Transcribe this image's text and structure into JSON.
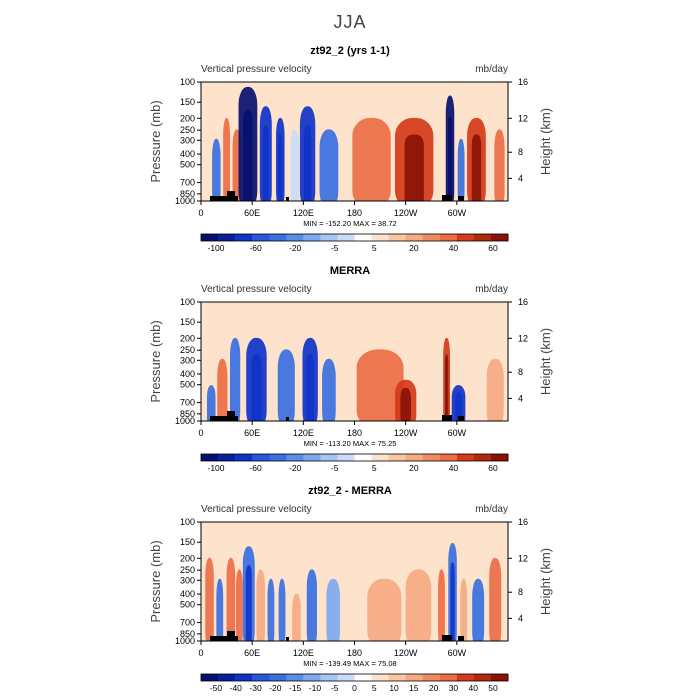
{
  "page_title": "JJA",
  "colors": {
    "blue_darkest": "#08106e",
    "blue_dark": "#1033c8",
    "blue_mid": "#3a6fe0",
    "blue_light": "#7fa8f0",
    "blue_pale": "#c9dcf8",
    "peach_pale": "#fde2cc",
    "orange_light": "#f5aa82",
    "orange": "#ec6e45",
    "red": "#d43b1a",
    "red_dark": "#8a1206",
    "topography": "#000000"
  },
  "chart_data": [
    {
      "type": "heatmap",
      "title": "zt92_2 (yrs 1-1)",
      "subtitle_left": "Vertical pressure velocity",
      "subtitle_right": "mb/day",
      "ylabel": "Pressure (mb)",
      "ylabel_right": "Height (km)",
      "x_ticks": [
        "0",
        "60E",
        "120E",
        "180",
        "120W",
        "60W"
      ],
      "y_ticks": [
        "100",
        "150",
        "200",
        "250",
        "300",
        "400",
        "500",
        "700",
        "850",
        "1000"
      ],
      "y_ticks_right": [
        "16",
        "12",
        "8",
        "4"
      ],
      "stats": "MIN = -152.20   MAX =  38.72",
      "colorbar_labels": [
        "-100",
        "-60",
        "-20",
        "-5",
        "5",
        "20",
        "40",
        "60"
      ],
      "min": -152.2,
      "max": 38.72,
      "features": [
        {
          "lon": 18,
          "width": 10,
          "top_mb": 300,
          "value": -20
        },
        {
          "lon": 30,
          "width": 8,
          "top_mb": 200,
          "value": 20
        },
        {
          "lon": 42,
          "width": 10,
          "top_mb": 250,
          "value": 20
        },
        {
          "lon": 55,
          "width": 22,
          "top_mb": 110,
          "value": -100
        },
        {
          "lon": 76,
          "width": 14,
          "top_mb": 160,
          "value": -60
        },
        {
          "lon": 93,
          "width": 10,
          "top_mb": 200,
          "value": -60
        },
        {
          "lon": 110,
          "width": 10,
          "top_mb": 250,
          "value": -5
        },
        {
          "lon": 125,
          "width": 18,
          "top_mb": 160,
          "value": -60
        },
        {
          "lon": 150,
          "width": 22,
          "top_mb": 250,
          "value": -20
        },
        {
          "lon": 200,
          "width": 45,
          "top_mb": 200,
          "value": 20
        },
        {
          "lon": 250,
          "width": 45,
          "top_mb": 200,
          "value": 40
        },
        {
          "lon": 292,
          "width": 10,
          "top_mb": 130,
          "value": -100
        },
        {
          "lon": 305,
          "width": 8,
          "top_mb": 300,
          "value": -20
        },
        {
          "lon": 323,
          "width": 22,
          "top_mb": 200,
          "value": 40
        },
        {
          "lon": 350,
          "width": 12,
          "top_mb": 250,
          "value": 20
        }
      ]
    },
    {
      "type": "heatmap",
      "title": "MERRA",
      "subtitle_left": "Vertical pressure velocity",
      "subtitle_right": "mb/day",
      "ylabel": "Pressure (mb)",
      "ylabel_right": "Height (km)",
      "x_ticks": [
        "0",
        "60E",
        "120E",
        "180",
        "120W",
        "60W"
      ],
      "y_ticks": [
        "100",
        "150",
        "200",
        "250",
        "300",
        "400",
        "500",
        "700",
        "850",
        "1000"
      ],
      "y_ticks_right": [
        "16",
        "12",
        "8",
        "4"
      ],
      "stats": "MIN = -113.20   MAX =  75.25",
      "colorbar_labels": [
        "-100",
        "-60",
        "-20",
        "-5",
        "5",
        "20",
        "40",
        "60"
      ],
      "min": -113.2,
      "max": 75.25,
      "features": [
        {
          "lon": 12,
          "width": 10,
          "top_mb": 500,
          "value": -20
        },
        {
          "lon": 25,
          "width": 12,
          "top_mb": 300,
          "value": 20
        },
        {
          "lon": 40,
          "width": 12,
          "top_mb": 200,
          "value": -20
        },
        {
          "lon": 65,
          "width": 24,
          "top_mb": 200,
          "value": -60
        },
        {
          "lon": 100,
          "width": 20,
          "top_mb": 250,
          "value": -20
        },
        {
          "lon": 128,
          "width": 18,
          "top_mb": 200,
          "value": -60
        },
        {
          "lon": 150,
          "width": 16,
          "top_mb": 300,
          "value": -20
        },
        {
          "lon": 210,
          "width": 55,
          "top_mb": 250,
          "value": 20
        },
        {
          "lon": 240,
          "width": 25,
          "top_mb": 450,
          "value": 40
        },
        {
          "lon": 288,
          "width": 8,
          "top_mb": 200,
          "value": 40
        },
        {
          "lon": 302,
          "width": 16,
          "top_mb": 500,
          "value": -60
        },
        {
          "lon": 345,
          "width": 20,
          "top_mb": 300,
          "value": 5
        }
      ]
    },
    {
      "type": "heatmap",
      "title": "zt92_2 - MERRA",
      "subtitle_left": "Vertical pressure velocity",
      "subtitle_right": "mb/day",
      "ylabel": "Pressure (mb)",
      "ylabel_right": "Height (km)",
      "x_ticks": [
        "0",
        "60E",
        "120E",
        "180",
        "120W",
        "60W"
      ],
      "y_ticks": [
        "100",
        "150",
        "200",
        "250",
        "300",
        "400",
        "500",
        "700",
        "850",
        "1000"
      ],
      "y_ticks_right": [
        "16",
        "12",
        "8",
        "4"
      ],
      "stats": "MIN = -139.49   MAX =  75.08",
      "colorbar_labels": [
        "-50",
        "-40",
        "-30",
        "-20",
        "-15",
        "-10",
        "-5",
        "0",
        "5",
        "10",
        "15",
        "20",
        "30",
        "40",
        "50"
      ],
      "min": -139.49,
      "max": 75.08,
      "features": [
        {
          "lon": 10,
          "width": 10,
          "top_mb": 200,
          "value": 30
        },
        {
          "lon": 22,
          "width": 8,
          "top_mb": 300,
          "value": -20
        },
        {
          "lon": 35,
          "width": 10,
          "top_mb": 200,
          "value": 20
        },
        {
          "lon": 45,
          "width": 8,
          "top_mb": 250,
          "value": 30
        },
        {
          "lon": 56,
          "width": 14,
          "top_mb": 160,
          "value": -50
        },
        {
          "lon": 70,
          "width": 10,
          "top_mb": 250,
          "value": 15
        },
        {
          "lon": 82,
          "width": 8,
          "top_mb": 300,
          "value": -20
        },
        {
          "lon": 95,
          "width": 8,
          "top_mb": 300,
          "value": -30
        },
        {
          "lon": 112,
          "width": 10,
          "top_mb": 400,
          "value": 10
        },
        {
          "lon": 130,
          "width": 12,
          "top_mb": 250,
          "value": -20
        },
        {
          "lon": 155,
          "width": 16,
          "top_mb": 300,
          "value": -10
        },
        {
          "lon": 215,
          "width": 40,
          "top_mb": 300,
          "value": 5
        },
        {
          "lon": 255,
          "width": 30,
          "top_mb": 250,
          "value": 5
        },
        {
          "lon": 282,
          "width": 8,
          "top_mb": 250,
          "value": 20
        },
        {
          "lon": 295,
          "width": 10,
          "top_mb": 150,
          "value": -50
        },
        {
          "lon": 308,
          "width": 8,
          "top_mb": 300,
          "value": 15
        },
        {
          "lon": 325,
          "width": 14,
          "top_mb": 300,
          "value": -20
        },
        {
          "lon": 345,
          "width": 14,
          "top_mb": 200,
          "value": 30
        }
      ]
    }
  ]
}
